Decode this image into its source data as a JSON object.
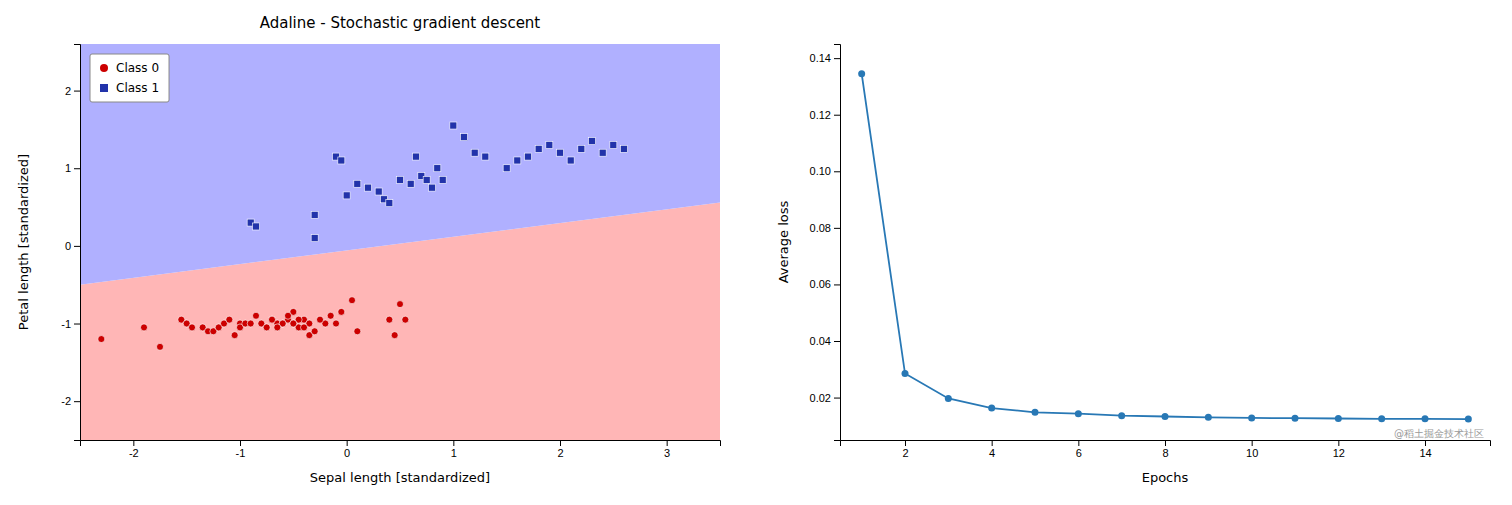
{
  "chart_data": [
    {
      "type": "scatter",
      "title": "Adaline - Stochastic gradient descent",
      "x_label": "Sepal length [standardized]",
      "y_label": "Petal length [standardized]",
      "xlim": [
        -2.5,
        3.5
      ],
      "ylim": [
        -2.5,
        2.6
      ],
      "xticks": [
        -2,
        -1,
        0,
        1,
        2,
        3
      ],
      "yticks": [
        -2,
        -1,
        0,
        1,
        2
      ],
      "grid": false,
      "legend": "top-left",
      "boundary_x": [
        -2.5,
        3.5
      ],
      "boundary_y": [
        -0.5,
        0.56
      ],
      "region_colors": [
        "#ffb6b6",
        "#b0b0ff"
      ],
      "series": [
        {
          "name": "Class 0",
          "color": "#cc0000",
          "marker": "circle",
          "x": [
            -2.3,
            -1.9,
            -1.75,
            -1.55,
            -1.5,
            -1.45,
            -1.35,
            -1.3,
            -1.25,
            -1.2,
            -1.15,
            -1.1,
            -1.05,
            -1.0,
            -1.0,
            -0.95,
            -0.9,
            -0.85,
            -0.8,
            -0.75,
            -0.7,
            -0.65,
            -0.6,
            -0.55,
            -0.5,
            -0.5,
            -0.45,
            -0.4,
            -0.35,
            0.05,
            0.1,
            0.4,
            0.45,
            0.5,
            0.55,
            -0.15,
            -0.2,
            -0.25,
            -0.05,
            -0.1,
            -0.3,
            -0.35,
            -0.4,
            -0.45,
            -0.5,
            -0.55,
            -0.6,
            -0.65,
            -0.7
          ],
          "values": [
            -1.2,
            -1.05,
            -1.3,
            -0.95,
            -1.0,
            -1.05,
            -1.05,
            -1.1,
            -1.1,
            -1.05,
            -1.0,
            -0.95,
            -1.15,
            -1.0,
            -1.05,
            -1.0,
            -1.0,
            -0.9,
            -1.0,
            -1.05,
            -0.95,
            -1.0,
            -1.0,
            -0.95,
            -1.0,
            -0.85,
            -1.05,
            -0.95,
            -1.15,
            -0.7,
            -1.1,
            -0.95,
            -1.15,
            -0.75,
            -0.95,
            -0.9,
            -1.0,
            -0.95,
            -0.85,
            -1.0,
            -1.1,
            -1.0,
            -1.05,
            -0.95,
            -1.0,
            -0.9,
            -1.0,
            -1.05,
            -0.95
          ]
        },
        {
          "name": "Class 1",
          "color": "#2233aa",
          "marker": "square",
          "x": [
            -0.9,
            -0.85,
            -0.3,
            -0.3,
            -0.1,
            -0.05,
            0.0,
            0.1,
            0.2,
            0.3,
            0.35,
            0.4,
            0.5,
            0.6,
            0.65,
            0.7,
            0.75,
            0.8,
            0.85,
            0.9,
            1.0,
            1.1,
            1.2,
            1.3,
            1.5,
            1.6,
            1.7,
            1.8,
            1.9,
            2.0,
            2.1,
            2.2,
            2.3,
            2.4,
            2.5,
            2.6
          ],
          "values": [
            0.3,
            0.25,
            0.4,
            0.1,
            1.15,
            1.1,
            0.65,
            0.8,
            0.75,
            0.7,
            0.6,
            0.55,
            0.85,
            0.8,
            1.15,
            0.9,
            0.85,
            0.75,
            1.0,
            0.85,
            1.55,
            1.4,
            1.2,
            1.15,
            1.0,
            1.1,
            1.15,
            1.25,
            1.3,
            1.2,
            1.1,
            1.25,
            1.35,
            1.2,
            1.3,
            1.25
          ]
        }
      ]
    },
    {
      "type": "line",
      "x_label": "Epochs",
      "y_label": "Average loss",
      "xlim": [
        0.5,
        15.5
      ],
      "ylim": [
        0.005,
        0.145
      ],
      "xticks": [
        2,
        4,
        6,
        8,
        10,
        12,
        14
      ],
      "yticks": [
        0.02,
        0.04,
        0.06,
        0.08,
        {
          "value": 0.1,
          "label": "0.10"
        },
        0.12,
        0.14
      ],
      "grid": false,
      "color": "#2878b5",
      "marker": "circle",
      "x": [
        1,
        2,
        3,
        4,
        5,
        6,
        7,
        8,
        9,
        10,
        11,
        12,
        13,
        14,
        15
      ],
      "values": [
        0.1345,
        0.0285,
        0.0197,
        0.0163,
        0.0148,
        0.0143,
        0.0136,
        0.0133,
        0.013,
        0.0128,
        0.0127,
        0.0126,
        0.0125,
        0.0125,
        0.0124
      ],
      "annotation": "@稻土掘金技术社区"
    }
  ]
}
